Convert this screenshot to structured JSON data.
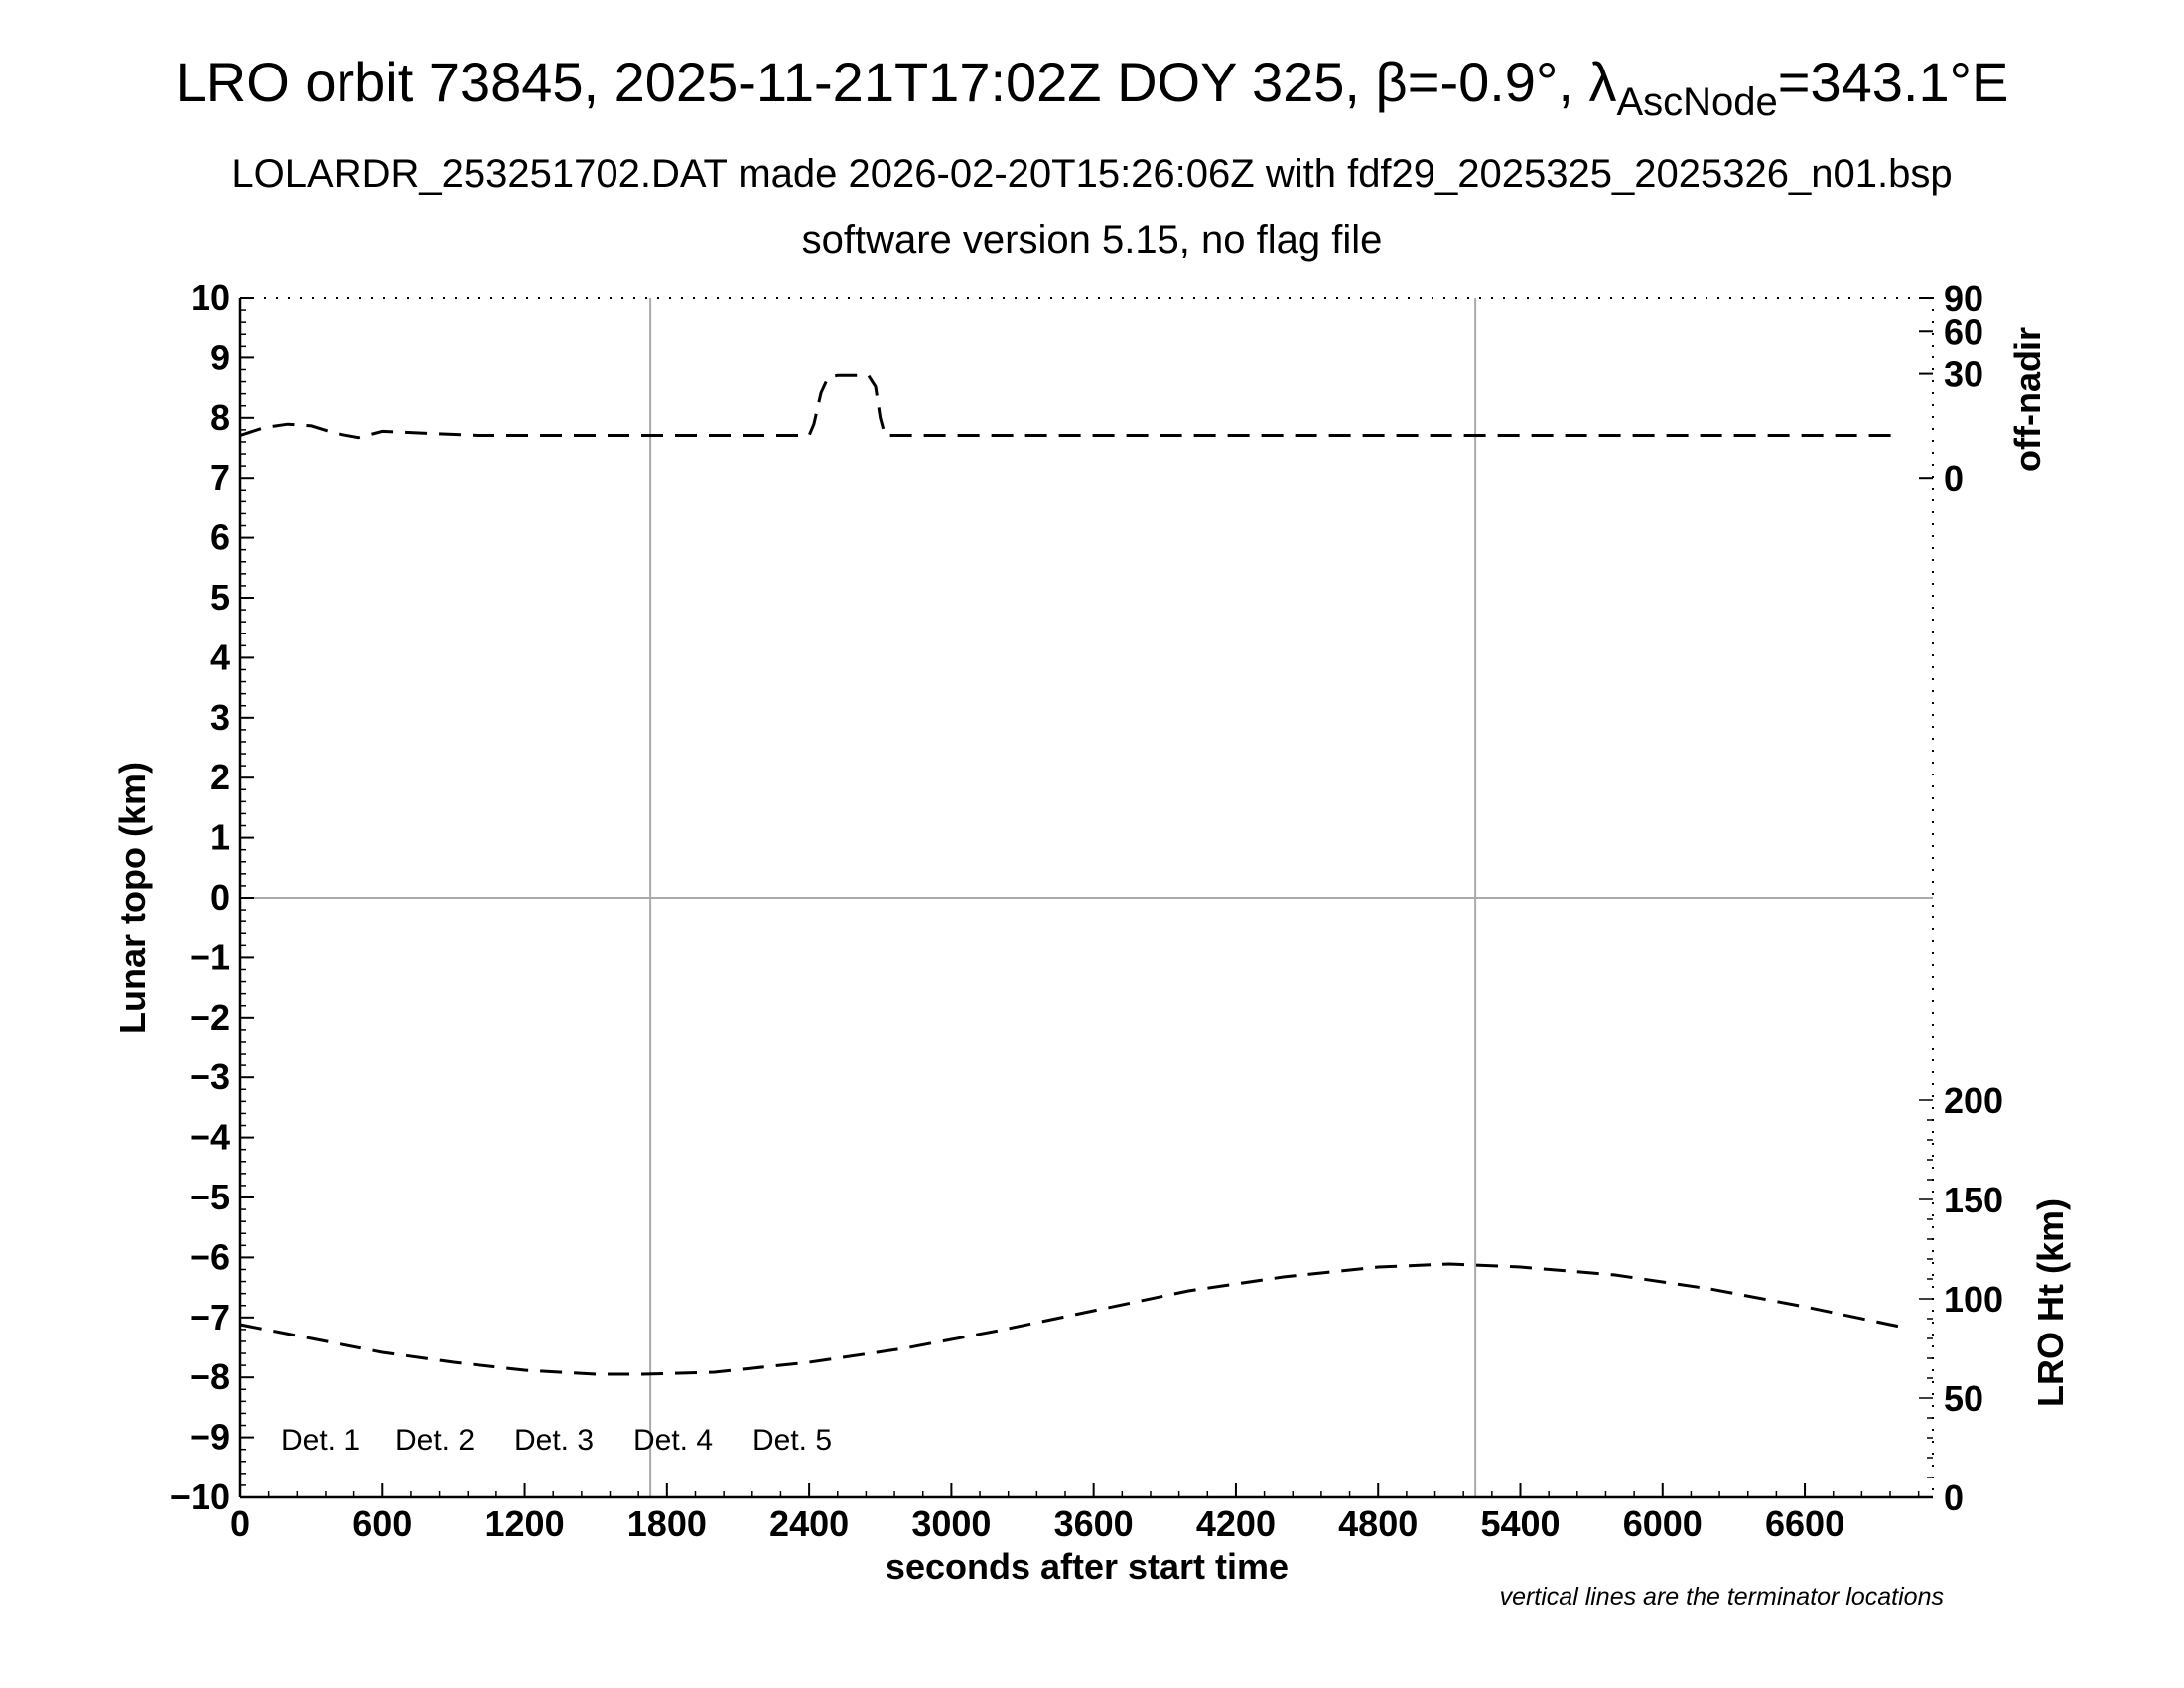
{
  "title": {
    "main": "LRO orbit 73845, 2025-11-21T17:02Z DOY 325, ",
    "beta_symbol": "β",
    "beta_text": "=-0.9°, ",
    "lambda_symbol": "λ",
    "lambda_subscript": "AscNode",
    "lambda_text": "=343.1°E",
    "subtitle1": "LOLARDR_253251702.DAT made 2026-02-20T15:26:06Z with fdf29_2025325_2025326_n01.bsp",
    "subtitle2": "software version 5.15, no flag file"
  },
  "note": "vertical lines are the terminator locations",
  "chart_data": {
    "type": "line",
    "xlabel": "seconds after start time",
    "ylabel": "Lunar topo (km)",
    "ylabel_right_top": "off-nadir",
    "ylabel_right_bottom": "LRO Ht (km)",
    "xlim": [
      0,
      7140
    ],
    "ylim": [
      -10,
      10
    ],
    "x_ticks": [
      "0",
      "600",
      "1200",
      "1800",
      "2400",
      "3000",
      "3600",
      "4200",
      "4800",
      "5400",
      "6000",
      "6600"
    ],
    "x_tick_values": [
      0,
      600,
      1200,
      1800,
      2400,
      3000,
      3600,
      4200,
      4800,
      5400,
      6000,
      6600
    ],
    "y_ticks": [
      "10",
      "9",
      "8",
      "7",
      "6",
      "5",
      "4",
      "3",
      "2",
      "1",
      "0",
      "−1",
      "−2",
      "−3",
      "−4",
      "−5",
      "−6",
      "−7",
      "−8",
      "−9",
      "−10"
    ],
    "y_tick_values": [
      10,
      9,
      8,
      7,
      6,
      5,
      4,
      3,
      2,
      1,
      0,
      -1,
      -2,
      -3,
      -4,
      -5,
      -6,
      -7,
      -8,
      -9,
      -10
    ],
    "right_top_ticks": [
      "90",
      "60",
      "30",
      "0"
    ],
    "right_top_tick_values": [
      90,
      60,
      30,
      0
    ],
    "right_bottom_ticks": [
      "200",
      "150",
      "100",
      "50",
      "0"
    ],
    "right_bottom_tick_values": [
      200,
      150,
      100,
      50,
      0
    ],
    "terminator_lines_x": [
      1730,
      5210
    ],
    "zero_line_y": 0,
    "legend": [
      {
        "label": "Det. 1",
        "color": "#000000"
      },
      {
        "label": "Det. 2",
        "color": "#0000ff"
      },
      {
        "label": "Det. 3",
        "color": "#00ff00"
      },
      {
        "label": "Det. 4",
        "color": "#ffa500"
      },
      {
        "label": "Det. 5",
        "color": "#ff0000"
      }
    ],
    "series": [
      {
        "axis": "off-nadir (deg)",
        "style": "dashed",
        "x": [
          0,
          100,
          200,
          300,
          400,
          500,
          600,
          1000,
          1500,
          2000,
          2400,
          2420,
          2450,
          2480,
          2520,
          2600,
          2650,
          2680,
          2700,
          2720,
          3000,
          4000,
          5000,
          6000,
          7000
        ],
        "values": [
          5,
          7,
          8,
          7.5,
          5.5,
          4.5,
          6,
          5,
          5,
          5,
          5,
          8,
          20,
          28,
          29,
          29,
          29,
          23,
          10,
          5,
          5,
          5,
          5,
          5,
          5
        ]
      },
      {
        "axis": "LRO Ht (km)",
        "style": "dashed",
        "x": [
          0,
          300,
          600,
          900,
          1200,
          1500,
          1700,
          2000,
          2400,
          2800,
          3200,
          3600,
          4000,
          4400,
          4800,
          5100,
          5400,
          5800,
          6200,
          6600,
          7000
        ],
        "values": [
          87,
          80,
          73,
          68,
          64,
          62,
          62,
          63,
          68,
          75,
          84,
          94,
          104,
          111,
          116,
          117.5,
          116,
          112,
          105,
          96,
          86
        ]
      }
    ]
  }
}
